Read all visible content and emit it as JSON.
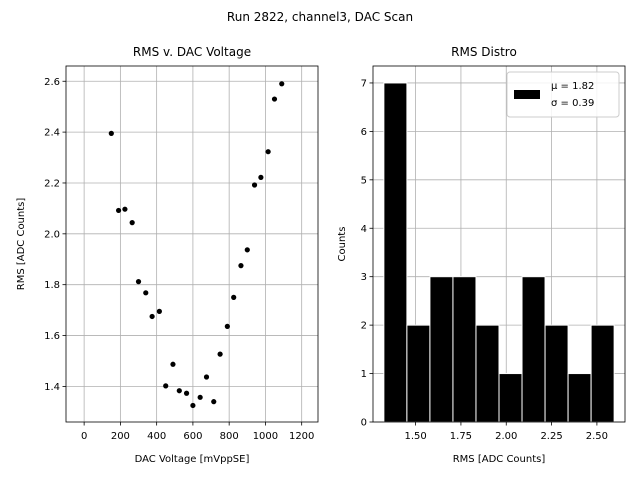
{
  "suptitle": "Run 2822, channel3, DAC Scan",
  "chart_data": [
    {
      "type": "scatter",
      "title": "RMS v. DAC Voltage",
      "xlabel": "DAC Voltage [mVppSE]",
      "ylabel": "RMS [ADC Counts]",
      "xlim": [
        -100,
        1290
      ],
      "ylim": [
        1.26,
        2.66
      ],
      "xticks": [
        0,
        200,
        400,
        600,
        800,
        1000,
        1200
      ],
      "yticks": [
        1.4,
        1.6,
        1.8,
        2.0,
        2.2,
        2.4,
        2.6
      ],
      "xtick_labels": [
        "0",
        "200",
        "400",
        "600",
        "800",
        "1000",
        "1200"
      ],
      "ytick_labels": [
        "1.4",
        "1.6",
        "1.8",
        "2.0",
        "2.2",
        "2.4",
        "2.6"
      ],
      "grid": true,
      "marker_color": "#000000",
      "points": [
        {
          "x": 150,
          "y": 2.395
        },
        {
          "x": 190,
          "y": 2.092
        },
        {
          "x": 225,
          "y": 2.097
        },
        {
          "x": 265,
          "y": 2.044
        },
        {
          "x": 300,
          "y": 1.812
        },
        {
          "x": 340,
          "y": 1.768
        },
        {
          "x": 375,
          "y": 1.675
        },
        {
          "x": 415,
          "y": 1.695
        },
        {
          "x": 450,
          "y": 1.402
        },
        {
          "x": 490,
          "y": 1.487
        },
        {
          "x": 525,
          "y": 1.383
        },
        {
          "x": 565,
          "y": 1.373
        },
        {
          "x": 600,
          "y": 1.325
        },
        {
          "x": 640,
          "y": 1.357
        },
        {
          "x": 675,
          "y": 1.437
        },
        {
          "x": 715,
          "y": 1.34
        },
        {
          "x": 750,
          "y": 1.527
        },
        {
          "x": 790,
          "y": 1.636
        },
        {
          "x": 825,
          "y": 1.75
        },
        {
          "x": 865,
          "y": 1.875
        },
        {
          "x": 900,
          "y": 1.937
        },
        {
          "x": 940,
          "y": 2.192
        },
        {
          "x": 975,
          "y": 2.222
        },
        {
          "x": 1015,
          "y": 2.323
        },
        {
          "x": 1050,
          "y": 2.53
        },
        {
          "x": 1090,
          "y": 2.59
        }
      ]
    },
    {
      "type": "bar",
      "title": "RMS Distro",
      "xlabel": "RMS [ADC Counts]",
      "ylabel": "Counts",
      "xlim": [
        1.265,
        2.655
      ],
      "ylim": [
        0,
        7.35
      ],
      "xticks": [
        1.5,
        1.75,
        2.0,
        2.25,
        2.5
      ],
      "yticks": [
        0,
        1,
        2,
        3,
        4,
        5,
        6,
        7
      ],
      "xtick_labels": [
        "1.50",
        "1.75",
        "2.00",
        "2.25",
        "2.50"
      ],
      "ytick_labels": [
        "0",
        "1",
        "2",
        "3",
        "4",
        "5",
        "6",
        "7"
      ],
      "grid": true,
      "bar_color": "#000000",
      "bar_edge_color": "#ffffff",
      "bin_edges": [
        1.325,
        1.452,
        1.579,
        1.706,
        1.833,
        1.96,
        2.087,
        2.214,
        2.341,
        2.468,
        2.595
      ],
      "counts": [
        7,
        2,
        3,
        3,
        2,
        1,
        3,
        2,
        1,
        2
      ],
      "legend": {
        "placement": "top-right",
        "lines": [
          "$\\mu$ = 1.82",
          "$\\sigma$ = 0.39"
        ],
        "display_mu": "μ = 1.82",
        "display_sigma": "σ = 0.39"
      }
    }
  ]
}
